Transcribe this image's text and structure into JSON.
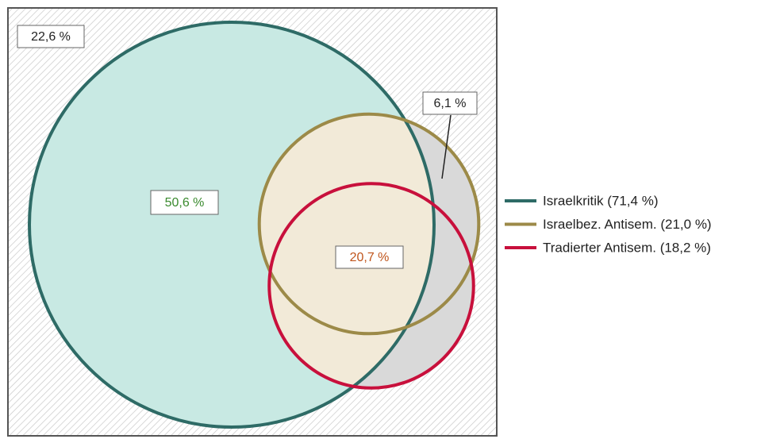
{
  "chart_data": {
    "type": "venn",
    "series": [
      {
        "name": "Israelkritik (71,4 %)",
        "value": 71.4,
        "color": "#2e6b66",
        "fill": "#c8e9e3"
      },
      {
        "name": "Israelbez. Antisem. (21,0 %)",
        "value": 21.0,
        "color": "#9c8a48",
        "fill": "#f2ead8"
      },
      {
        "name": "Tradierter Antisem. (18,2 %)",
        "value": 18.2,
        "color": "#c8103c",
        "fill": "#f2ead8"
      }
    ],
    "regions": {
      "values": [
        22.6,
        50.6,
        6.1,
        20.7
      ],
      "value_labels": [
        "22,6 %",
        "50,6 %",
        "6,1 %",
        "20,7 %"
      ],
      "colors": [
        "#222222",
        "#3a8a2e",
        "#222222",
        "#c0551c"
      ]
    },
    "outside_fill": "#d9d9d9"
  }
}
